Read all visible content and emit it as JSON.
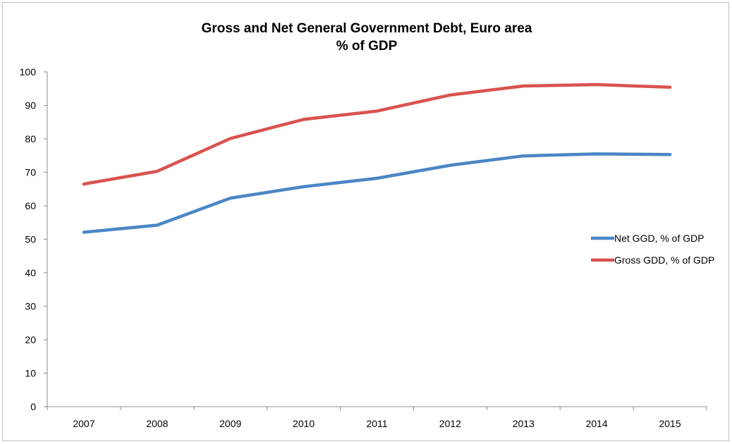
{
  "chart_data": {
    "type": "line",
    "title": "Gross and Net General Government Debt, Euro area",
    "subtitle": "% of GDP",
    "xlabel": "",
    "ylabel": "",
    "categories": [
      "2007",
      "2008",
      "2009",
      "2010",
      "2011",
      "2012",
      "2013",
      "2014",
      "2015"
    ],
    "ylim": [
      0,
      100
    ],
    "yticks": [
      0,
      10,
      20,
      30,
      40,
      50,
      60,
      70,
      80,
      90,
      100
    ],
    "ytick_labels": [
      "0",
      "10",
      "20",
      "30",
      "40",
      "50",
      "60",
      "70",
      "80",
      "90",
      "100"
    ],
    "grid": false,
    "legend_position": "right",
    "series": [
      {
        "name": "Net GGD, % of GDP",
        "color": "#4a86c5",
        "values": [
          52.1,
          54.2,
          62.3,
          65.7,
          68.2,
          72.1,
          74.9,
          75.5,
          75.3
        ]
      },
      {
        "name": "Gross GDD, % of GDP",
        "color": "#d9534f",
        "values": [
          66.5,
          70.3,
          80.1,
          85.8,
          88.3,
          93.1,
          95.8,
          96.2,
          95.4
        ]
      }
    ]
  }
}
